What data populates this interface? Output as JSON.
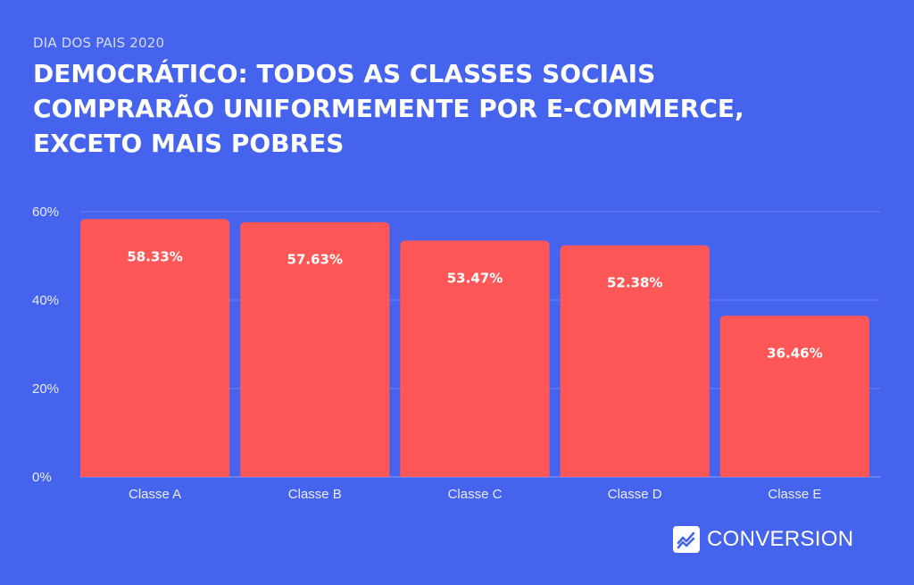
{
  "header": {
    "subtitle": "DIA DOS PAIS 2020",
    "title_lines": [
      "DEMOCRÁTICO: TODOS AS CLASSES SOCIAIS",
      "COMPRARÃO UNIFORMEMENTE POR E-COMMERCE,",
      "EXCETO MAIS POBRES"
    ]
  },
  "brand": {
    "name": "CONVERSION",
    "icon": "chart-line-icon"
  },
  "colors": {
    "background": "#4663EE",
    "bar": "#FF5757",
    "gridline": "#6A83F2"
  },
  "chart_data": {
    "type": "bar",
    "title": "DEMOCRÁTICO: TODOS AS CLASSES SOCIAIS COMPRARÃO UNIFORMEMENTE POR E-COMMERCE, EXCETO MAIS POBRES",
    "subtitle": "DIA DOS PAIS 2020",
    "xlabel": "",
    "ylabel": "",
    "categories": [
      "Classe A",
      "Classe B",
      "Classe C",
      "Classe D",
      "Classe E"
    ],
    "values": [
      58.33,
      57.63,
      53.47,
      52.38,
      36.46
    ],
    "value_labels": [
      "58.33%",
      "57.63%",
      "53.47%",
      "52.38%",
      "36.46%"
    ],
    "ylim": [
      0,
      60
    ],
    "yticks": [
      0,
      20,
      40,
      60
    ],
    "ytick_labels": [
      "0%",
      "20%",
      "40%",
      "60%"
    ],
    "grid": true,
    "legend": "none"
  }
}
